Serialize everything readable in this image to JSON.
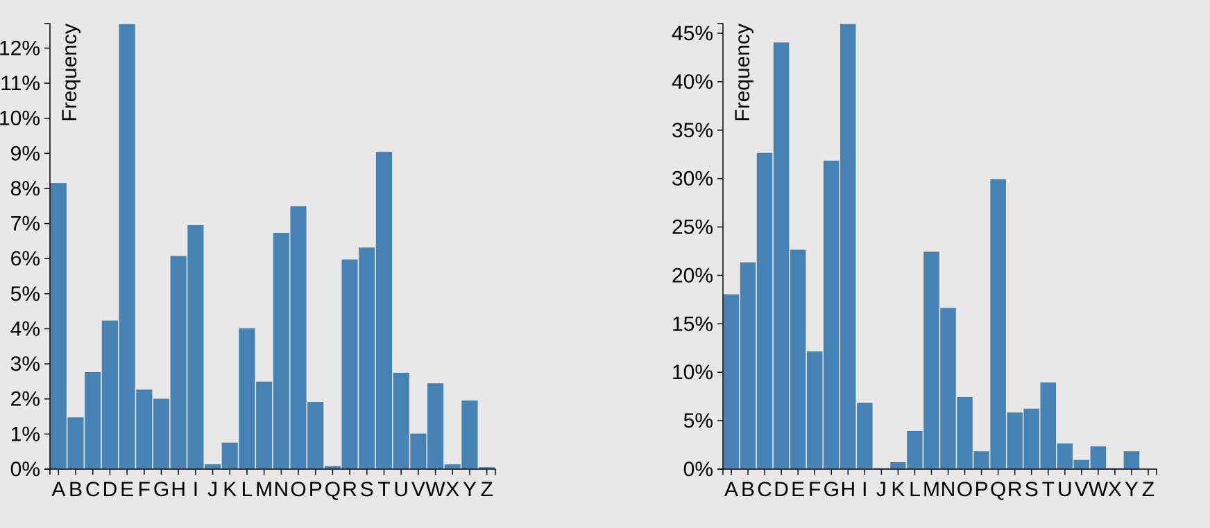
{
  "colors": {
    "background": "#e8e8e8",
    "bar": "#4682b4",
    "axis": "#000000"
  },
  "chart_data": [
    {
      "type": "bar",
      "title": "",
      "xlabel": "",
      "ylabel": "Frequency",
      "ylim": [
        0,
        0.127
      ],
      "yticks": [
        0,
        0.01,
        0.02,
        0.03,
        0.04,
        0.05,
        0.06,
        0.07,
        0.08,
        0.09,
        0.1,
        0.11,
        0.12
      ],
      "ytick_labels": [
        "0%",
        "1%",
        "2%",
        "3%",
        "4%",
        "5%",
        "6%",
        "7%",
        "8%",
        "9%",
        "10%",
        "11%",
        "12%"
      ],
      "categories": [
        "A",
        "B",
        "C",
        "D",
        "E",
        "F",
        "G",
        "H",
        "I",
        "J",
        "K",
        "L",
        "M",
        "N",
        "O",
        "P",
        "Q",
        "R",
        "S",
        "T",
        "U",
        "V",
        "W",
        "X",
        "Y",
        "Z"
      ],
      "values": [
        0.0817,
        0.0149,
        0.0278,
        0.0425,
        0.127,
        0.0228,
        0.0202,
        0.0609,
        0.0697,
        0.0015,
        0.0077,
        0.0403,
        0.0251,
        0.0675,
        0.0751,
        0.0193,
        0.001,
        0.0599,
        0.0633,
        0.0906,
        0.0276,
        0.0103,
        0.0246,
        0.0015,
        0.0197,
        0.0007
      ]
    },
    {
      "type": "bar",
      "title": "",
      "xlabel": "",
      "ylabel": "Frequency",
      "ylim": [
        0,
        0.46
      ],
      "yticks": [
        0,
        0.05,
        0.1,
        0.15,
        0.2,
        0.25,
        0.3,
        0.35,
        0.4,
        0.45
      ],
      "ytick_labels": [
        "0%",
        "5%",
        "10%",
        "15%",
        "20%",
        "25%",
        "30%",
        "35%",
        "40%",
        "45%"
      ],
      "categories": [
        "A",
        "B",
        "C",
        "D",
        "E",
        "F",
        "G",
        "H",
        "I",
        "J",
        "K",
        "L",
        "M",
        "N",
        "O",
        "P",
        "Q",
        "R",
        "S",
        "T",
        "U",
        "V",
        "W",
        "X",
        "Y",
        "Z"
      ],
      "values": [
        0.181,
        0.214,
        0.327,
        0.441,
        0.227,
        0.122,
        0.319,
        0.46,
        0.069,
        0.0015,
        0.0077,
        0.04,
        0.225,
        0.167,
        0.075,
        0.019,
        0.3,
        0.059,
        0.063,
        0.09,
        0.027,
        0.01,
        0.024,
        0.0015,
        0.019,
        0.0007
      ]
    }
  ]
}
